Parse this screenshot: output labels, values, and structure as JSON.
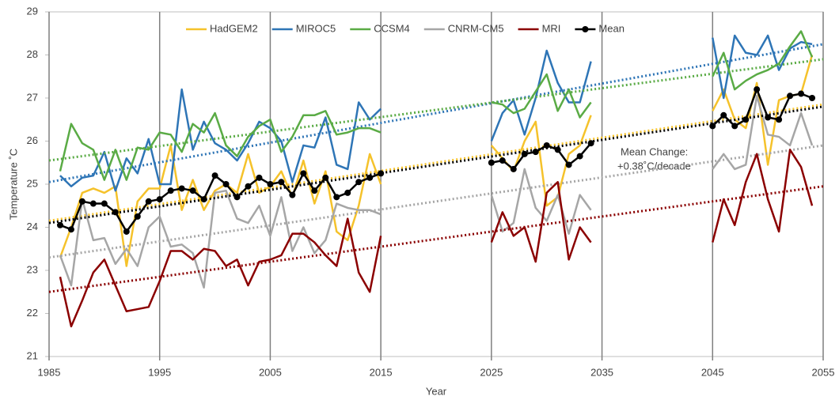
{
  "chart_data": {
    "type": "line",
    "x_label": "Year",
    "y_label": "Temperature ˚C",
    "x": [
      1986,
      1987,
      1988,
      1989,
      1990,
      1991,
      1992,
      1993,
      1994,
      1995,
      1996,
      1997,
      1998,
      1999,
      2000,
      2001,
      2002,
      2003,
      2004,
      2005,
      2006,
      2007,
      2008,
      2009,
      2010,
      2011,
      2012,
      2013,
      2014,
      2015,
      2020,
      2025,
      2026,
      2027,
      2028,
      2029,
      2030,
      2031,
      2032,
      2033,
      2034,
      2040,
      2045,
      2046,
      2047,
      2048,
      2049,
      2050,
      2051,
      2052,
      2053,
      2054
    ],
    "series": [
      {
        "name": "HadGEM2",
        "color": "#f5c22b",
        "values": [
          23.3,
          24.0,
          24.8,
          24.9,
          24.8,
          24.95,
          23.1,
          24.6,
          24.9,
          24.9,
          25.9,
          24.4,
          25.1,
          24.4,
          24.85,
          25.0,
          24.8,
          25.7,
          24.8,
          24.95,
          25.3,
          24.7,
          25.55,
          24.55,
          25.3,
          23.9,
          23.7,
          24.5,
          25.7,
          25.0,
          null,
          25.9,
          25.6,
          25.3,
          26.0,
          26.45,
          24.5,
          24.7,
          25.7,
          25.9,
          26.6,
          null,
          26.7,
          27.2,
          26.5,
          26.3,
          27.35,
          25.45,
          26.95,
          27.05,
          27.1,
          28.0
        ],
        "trend": {
          "x": [
            1985,
            2055
          ],
          "values": [
            24.15,
            26.85
          ]
        }
      },
      {
        "name": "MIROC5",
        "color": "#2e75b6",
        "values": [
          25.2,
          24.95,
          25.15,
          25.2,
          25.75,
          24.85,
          25.6,
          25.25,
          26.05,
          25.0,
          25.0,
          27.2,
          25.8,
          26.45,
          25.95,
          25.8,
          25.55,
          25.95,
          26.45,
          26.3,
          26.0,
          25.05,
          25.9,
          25.85,
          26.55,
          25.45,
          25.35,
          26.9,
          26.5,
          26.75,
          null,
          26.0,
          26.65,
          26.95,
          26.15,
          27.0,
          28.1,
          27.35,
          26.9,
          26.9,
          27.85,
          null,
          28.4,
          27.0,
          28.45,
          28.05,
          28.0,
          28.45,
          27.65,
          28.15,
          28.3,
          28.25
        ],
        "trend": {
          "x": [
            1985,
            2055
          ],
          "values": [
            25.05,
            28.25
          ]
        }
      },
      {
        "name": "CCSM4",
        "color": "#5aab45",
        "values": [
          25.3,
          26.4,
          25.95,
          25.8,
          25.1,
          25.8,
          25.1,
          25.85,
          25.8,
          26.2,
          26.15,
          25.75,
          26.4,
          26.2,
          26.65,
          25.9,
          25.65,
          26.1,
          26.35,
          26.5,
          25.75,
          26.1,
          26.6,
          26.6,
          26.7,
          26.15,
          26.2,
          26.3,
          26.3,
          26.2,
          null,
          26.9,
          26.85,
          26.65,
          26.75,
          27.15,
          27.55,
          26.7,
          27.2,
          26.55,
          26.9,
          null,
          27.5,
          28.05,
          27.2,
          27.4,
          27.55,
          27.65,
          27.8,
          28.2,
          28.55,
          27.95
        ],
        "trend": {
          "x": [
            1985,
            2055
          ],
          "values": [
            25.55,
            27.9
          ]
        }
      },
      {
        "name": "CNRM-CM5",
        "color": "#a6a6a6",
        "values": [
          23.35,
          22.65,
          24.65,
          23.7,
          23.75,
          23.15,
          23.5,
          23.1,
          24.0,
          24.25,
          23.55,
          23.6,
          23.4,
          22.6,
          24.8,
          24.85,
          24.2,
          24.1,
          24.5,
          23.8,
          24.7,
          23.45,
          24.0,
          23.4,
          23.7,
          24.55,
          24.45,
          24.4,
          24.4,
          24.3,
          null,
          24.75,
          23.9,
          24.1,
          25.35,
          24.45,
          24.15,
          24.75,
          23.85,
          24.75,
          24.4,
          null,
          25.35,
          25.7,
          25.35,
          25.45,
          27.05,
          26.15,
          26.1,
          25.9,
          26.65,
          25.9
        ],
        "trend": {
          "x": [
            1985,
            2055
          ],
          "values": [
            23.3,
            25.9
          ]
        }
      },
      {
        "name": "MRI",
        "color": "#8b0000",
        "values": [
          22.85,
          21.7,
          22.3,
          22.95,
          23.25,
          22.65,
          22.05,
          22.1,
          22.15,
          22.75,
          23.45,
          23.45,
          23.25,
          23.5,
          23.45,
          23.1,
          23.25,
          22.65,
          23.2,
          23.25,
          23.35,
          23.85,
          23.85,
          23.65,
          23.35,
          23.1,
          24.2,
          22.95,
          22.5,
          23.8,
          null,
          23.65,
          24.35,
          23.8,
          24.0,
          23.2,
          24.8,
          25.05,
          23.25,
          24.0,
          23.65,
          null,
          23.65,
          24.65,
          24.05,
          25.05,
          25.7,
          24.65,
          23.9,
          25.8,
          25.4,
          24.5
        ],
        "trend": {
          "x": [
            1985,
            2055
          ],
          "values": [
            22.5,
            24.95
          ]
        }
      },
      {
        "name": "Mean",
        "color": "#000000",
        "marker": true,
        "values": [
          24.05,
          23.95,
          24.6,
          24.55,
          24.55,
          24.35,
          23.9,
          24.25,
          24.6,
          24.65,
          24.85,
          24.9,
          24.85,
          24.65,
          25.2,
          25.0,
          24.7,
          24.95,
          25.15,
          25.0,
          25.05,
          24.75,
          25.25,
          24.85,
          25.15,
          24.7,
          24.8,
          25.05,
          25.15,
          25.25,
          null,
          25.5,
          25.55,
          25.35,
          25.7,
          25.75,
          25.9,
          25.8,
          25.45,
          25.65,
          25.95,
          null,
          26.35,
          26.6,
          26.35,
          26.5,
          27.2,
          26.55,
          26.5,
          27.05,
          27.1,
          27.0
        ],
        "trend": {
          "x": [
            1985,
            2055
          ],
          "values": [
            24.1,
            26.8
          ]
        }
      }
    ],
    "annotation": [
      "Mean Change:",
      "+0.38˚C/decade"
    ],
    "xlim": [
      1985,
      2055
    ],
    "xticks": [
      1985,
      1995,
      2005,
      2015,
      2025,
      2035,
      2045,
      2055
    ],
    "ylim": [
      21,
      29
    ],
    "yticks": [
      21,
      22,
      23,
      24,
      25,
      26,
      27,
      28,
      29
    ],
    "grid_x": true,
    "legend": "top"
  }
}
